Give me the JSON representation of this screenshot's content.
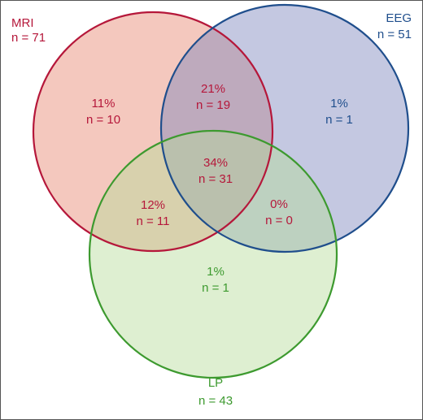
{
  "sets": {
    "mri": {
      "name": "MRI",
      "count": "n = 71",
      "stroke": "#b5173a",
      "fill": "#e6846f",
      "text_color": "#b5173a"
    },
    "eeg": {
      "name": "EEG",
      "count": "n = 51",
      "stroke": "#1f4e8c",
      "fill": "#7d86bd",
      "text_color": "#1f4e8c"
    },
    "lp": {
      "name": "LP",
      "count": "n = 43",
      "stroke": "#3d9a2f",
      "fill": "#b5dc98",
      "text_color": "#3d9a2f"
    }
  },
  "regions": {
    "mri_only": {
      "pct": "11%",
      "n": "n = 10"
    },
    "mri_eeg": {
      "pct": "21%",
      "n": "n = 19"
    },
    "eeg_only": {
      "pct": "1%",
      "n": "n = 1"
    },
    "all_three": {
      "pct": "34%",
      "n": "n = 31"
    },
    "mri_lp": {
      "pct": "12%",
      "n": "n = 11"
    },
    "eeg_lp": {
      "pct": "0%",
      "n": "n = 0"
    },
    "lp_only": {
      "pct": "1%",
      "n": "n = 1"
    }
  }
}
